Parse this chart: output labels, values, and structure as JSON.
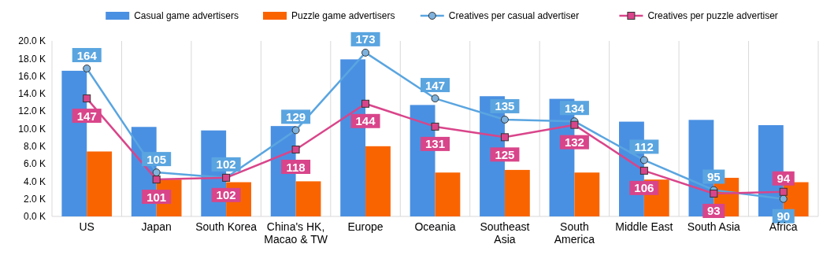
{
  "chart_data": {
    "type": "bar",
    "categories": [
      "US",
      "Japan",
      "South Korea",
      "China's HK, Macao & TW",
      "Europe",
      "Oceania",
      "Southeast Asia",
      "South America",
      "Middle East",
      "South Asia",
      "Africa"
    ],
    "series": [
      {
        "name": "Casual game advertisers",
        "color": "#4a90e2",
        "values": [
          16.6,
          10.2,
          9.8,
          10.3,
          17.9,
          12.7,
          13.7,
          13.4,
          10.8,
          11.0,
          10.4
        ]
      },
      {
        "name": "Puzzle game advertisers",
        "color": "#fa6400",
        "values": [
          7.4,
          4.2,
          3.9,
          4.0,
          8.0,
          5.0,
          5.3,
          5.0,
          4.2,
          4.4,
          3.9
        ]
      },
      {
        "name": "Creatives per casual advertiser",
        "type": "line",
        "axis": "y2",
        "marker": "circle",
        "color": "#5aa5e0",
        "values": [
          164,
          105,
          102,
          129,
          173,
          147,
          135,
          134,
          112,
          95,
          90
        ],
        "value_labels": [
          "164",
          "105",
          "102",
          "129",
          "173",
          "147",
          "135",
          "134",
          "112",
          "95",
          "90"
        ]
      },
      {
        "name": "Creatives per puzzle advertiser",
        "type": "line",
        "axis": "y2",
        "marker": "square",
        "color": "#d9458a",
        "values": [
          147,
          101,
          102,
          118,
          144,
          131,
          125,
          132,
          106,
          93,
          94
        ],
        "value_labels": [
          "147",
          "101",
          "102",
          "118",
          "144",
          "131",
          "125",
          "132",
          "106",
          "93",
          "94"
        ]
      }
    ],
    "ylim": [
      0,
      20
    ],
    "yticks": [
      {
        "value": 0,
        "label": "0.0 K"
      },
      {
        "value": 2,
        "label": "2.0 K"
      },
      {
        "value": 4,
        "label": "4.0 K"
      },
      {
        "value": 6,
        "label": "6.0 K"
      },
      {
        "value": 8,
        "label": "8.0 K"
      },
      {
        "value": 10,
        "label": "10.0 K"
      },
      {
        "value": 12,
        "label": "12.0 K"
      },
      {
        "value": 14,
        "label": "14.0 K"
      },
      {
        "value": 16,
        "label": "16.0 K"
      },
      {
        "value": 18,
        "label": "18.0 K"
      },
      {
        "value": 20,
        "label": "20.0 K"
      }
    ],
    "grid": "x",
    "legend": "top right"
  }
}
